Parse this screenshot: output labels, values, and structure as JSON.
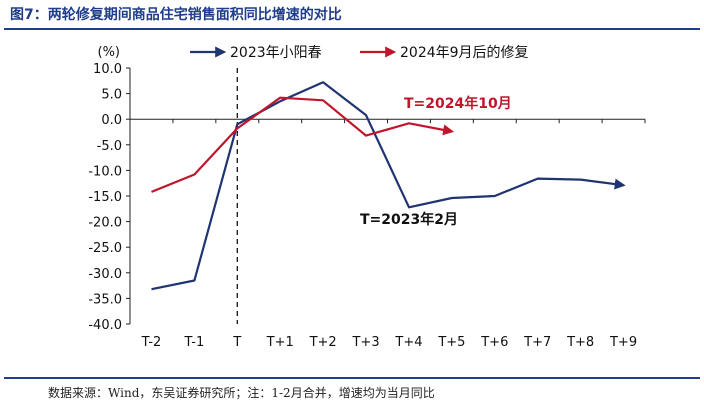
{
  "figure": {
    "title": "图7：两轮修复期间商品住宅销售面积同比增速的对比",
    "source": "数据来源：Wind，东吴证券研究所；注：1-2月合并，增速均为当月同比"
  },
  "chart_data": {
    "type": "line",
    "ylabel": "(%)",
    "ylim": [
      -40,
      10
    ],
    "yticks": [
      "10.0",
      "5.0",
      "0.0",
      "-5.0",
      "-10.0",
      "-15.0",
      "-20.0",
      "-25.0",
      "-30.0",
      "-35.0",
      "-40.0"
    ],
    "categories": [
      "T-2",
      "T-1",
      "T",
      "T+1",
      "T+2",
      "T+3",
      "T+4",
      "T+5",
      "T+6",
      "T+7",
      "T+8",
      "T+9"
    ],
    "series": [
      {
        "name": "2023年小阳春",
        "color": "#1f3470",
        "values": [
          -33.2,
          -31.5,
          -1.0,
          3.5,
          7.2,
          0.8,
          -17.2,
          -15.4,
          -15.0,
          -11.6,
          -11.8,
          -12.9
        ]
      },
      {
        "name": "2024年9月后的修复",
        "color": "#c0162c",
        "values": [
          -14.2,
          -10.8,
          -1.8,
          4.2,
          3.7,
          -3.2,
          -0.8,
          -2.4,
          null,
          null,
          null,
          null
        ]
      }
    ],
    "annotations": [
      {
        "text": "T=2024年10月",
        "color": "#c0162c"
      },
      {
        "text": "T=2023年2月",
        "color": "#111111"
      }
    ],
    "vline_category": "T",
    "legend": "top",
    "grid": false
  }
}
